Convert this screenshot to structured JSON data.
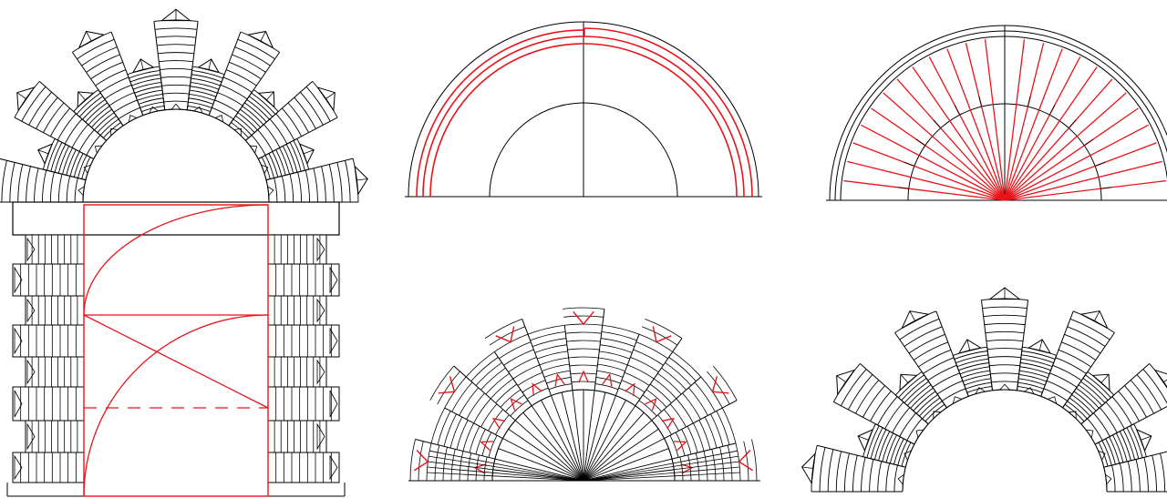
{
  "colors": {
    "background": "#ffffff",
    "construction": "#000000",
    "highlight": "#e8141b"
  },
  "panels": [
    {
      "name": "arched-doorway-elevation",
      "description_visible_text": ""
    },
    {
      "name": "concentric-semicircles-construction",
      "description_visible_text": ""
    },
    {
      "name": "radial-joint-lines-construction",
      "description_visible_text": ""
    },
    {
      "name": "voussoir-steps-construction",
      "description_visible_text": ""
    },
    {
      "name": "finished-stepped-voussoir-arch",
      "description_visible_text": ""
    }
  ]
}
